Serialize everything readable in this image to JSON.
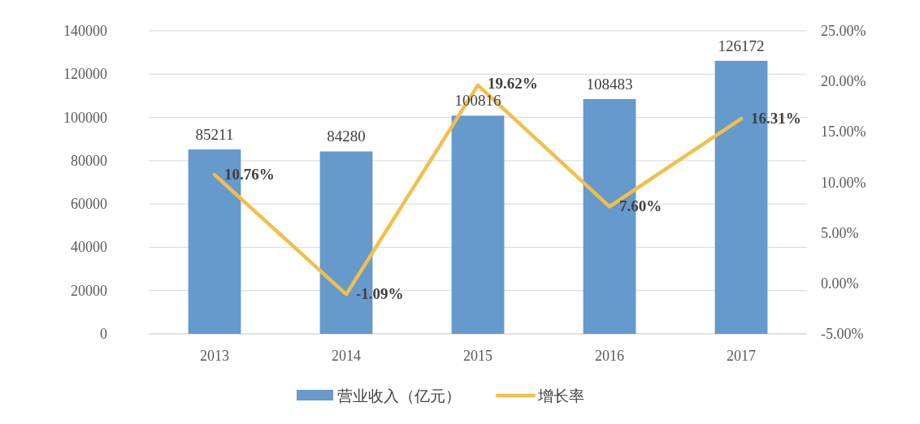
{
  "chart_data": {
    "type": "bar",
    "categories": [
      "2013",
      "2014",
      "2015",
      "2016",
      "2017"
    ],
    "series": [
      {
        "name": "营业收入（亿元）",
        "color": "#6699cc",
        "values": [
          85211,
          84280,
          100816,
          108483,
          126172
        ],
        "value_labels": [
          "85211",
          "84280",
          "100816",
          "108483",
          "126172"
        ]
      },
      {
        "name": "增长率",
        "type": "line",
        "axis": "y2",
        "color": "#f2bf4a",
        "values": [
          10.76,
          -1.09,
          19.62,
          7.6,
          16.31
        ],
        "value_labels": [
          "10.76%",
          "-1.09%",
          "19.62%",
          "7.60%",
          "16.31%"
        ]
      }
    ],
    "ylim": [
      0,
      140000
    ],
    "yticks": [
      0,
      20000,
      40000,
      60000,
      80000,
      100000,
      120000,
      140000
    ],
    "y2lim": [
      -5,
      25
    ],
    "y2ticks": [
      {
        "value": -5,
        "label": "-5.00%"
      },
      {
        "value": 0,
        "label": "0.00%"
      },
      {
        "value": 5,
        "label": "5.00%"
      },
      {
        "value": 10,
        "label": "10.00%"
      },
      {
        "value": 15,
        "label": "15.00%"
      },
      {
        "value": 20,
        "label": "20.00%"
      },
      {
        "value": 25,
        "label": "25.00%"
      }
    ],
    "grid": "y",
    "legend": "bottom",
    "marker": "none",
    "line_style": "solid"
  }
}
